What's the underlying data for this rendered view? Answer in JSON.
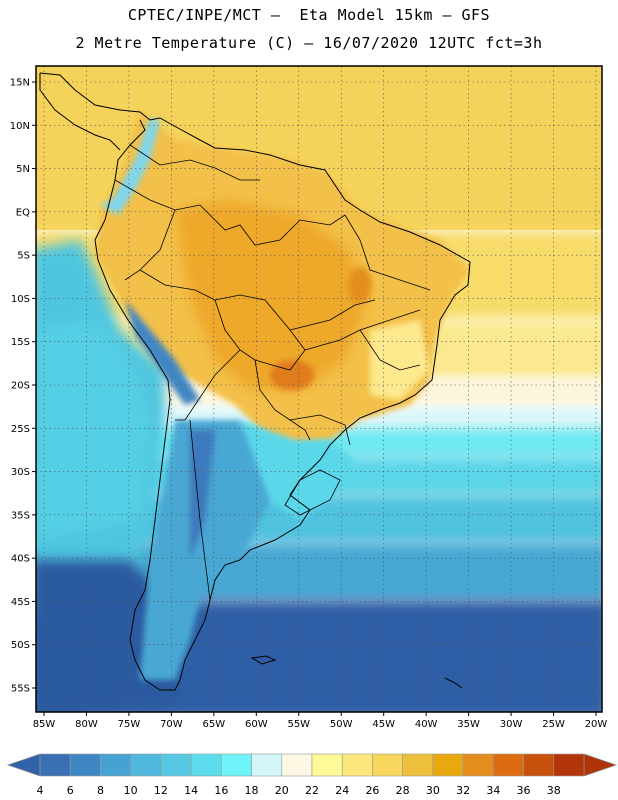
{
  "header": {
    "line1": "CPTEC/INPE/MCT –  Eta Model 15km – GFS",
    "line2": "2 Metre Temperature (C) – 16/07/2020 12UTC fct=3h"
  },
  "map": {
    "lat_labels": [
      "15N",
      "10N",
      "5N",
      "EQ",
      "5S",
      "10S",
      "15S",
      "20S",
      "25S",
      "30S",
      "35S",
      "40S",
      "45S",
      "50S",
      "55S"
    ],
    "lon_labels": [
      "85W",
      "80W",
      "75W",
      "70W",
      "65W",
      "60W",
      "55W",
      "50W",
      "45W",
      "40W",
      "35W",
      "30W",
      "25W",
      "20W"
    ],
    "lat_values": [
      15,
      10,
      5,
      0,
      -5,
      -10,
      -15,
      -20,
      -25,
      -30,
      -35,
      -40,
      -45,
      -50,
      -55
    ],
    "lon_values": [
      -85,
      -80,
      -75,
      -70,
      -65,
      -60,
      -55,
      -50,
      -45,
      -40,
      -35,
      -30,
      -25,
      -20
    ]
  },
  "legend": {
    "labels": [
      "4",
      "6",
      "8",
      "10",
      "12",
      "14",
      "16",
      "18",
      "20",
      "22",
      "24",
      "26",
      "28",
      "30",
      "32",
      "34",
      "36",
      "38"
    ],
    "colors": [
      "#3a6fb4",
      "#3f86c4",
      "#46a2d2",
      "#4fb8dc",
      "#55c8e3",
      "#5cdcec",
      "#6ef4f9",
      "#d4f6fa",
      "#fdf8e4",
      "#fefa9a",
      "#fbe77c",
      "#f7d65b",
      "#eebf3a",
      "#e8a90f",
      "#e48c1c",
      "#dd6b10",
      "#c7500a",
      "#b3360b"
    ],
    "low_color": "#3163a8",
    "high_color": "#b0340a"
  }
}
